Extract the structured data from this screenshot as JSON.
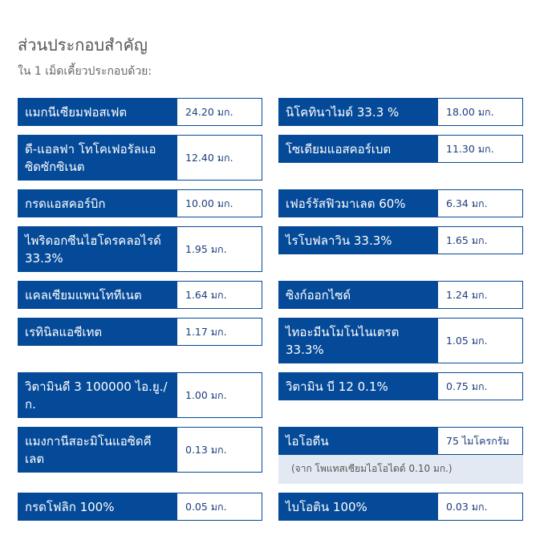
{
  "header": {
    "title": "ส่วนประกอบสำคัญ",
    "subtitle": "ใน 1 เม็ดเคี้ยวประกอบด้วย:"
  },
  "rows": [
    {
      "left": {
        "name": "แมกนีเซียมฟอสเฟต",
        "amount": "24.20 มก."
      },
      "right": {
        "name": "นิโคทินาไมด์ 33.3 %",
        "amount": "18.00 มก."
      }
    },
    {
      "left": {
        "name": "ดี-แอลฟา โทโคเฟอรัลแอซิดซักซิเนต",
        "amount": "12.40 มก."
      },
      "right": {
        "name": "โซเดียมแอสคอร์เบต",
        "amount": "11.30 มก."
      }
    },
    {
      "left": {
        "name": "กรดแอสคอร์บิก",
        "amount": "10.00 มก."
      },
      "right": {
        "name": "เฟอร์รัสฟิวมาเลต 60%",
        "amount": "6.34 มก."
      }
    },
    {
      "left": {
        "name": "ไพริดอกซีนไฮโดรคลอไรด์ 33.3%",
        "amount": "1.95 มก."
      },
      "right": {
        "name": "ไรโบฟลาวิน 33.3%",
        "amount": "1.65 มก."
      }
    },
    {
      "left": {
        "name": "แคลเซียมแพนโททีเนต",
        "amount": "1.64 มก."
      },
      "right": {
        "name": "ซิงก์ออกไซด์",
        "amount": "1.24 มก."
      }
    },
    {
      "left": {
        "name": "เรทินิลแอซีเทต",
        "amount": "1.17 มก."
      },
      "right": {
        "name": "ไทอะมีนโมโนไนเตรต 33.3%",
        "amount": "1.05 มก."
      }
    },
    {
      "left": {
        "name": "วิตามินดี 3 100000 ไอ.ยู./ก.",
        "amount": "1.00 มก."
      },
      "right": {
        "name": "วิตามิน บี 12 0.1%",
        "amount": "0.75 มก."
      }
    },
    {
      "left": {
        "name": "แมงกานีสอะมิโนแอซิดคีเลต",
        "amount": "0.13 มก."
      },
      "right": {
        "name": "ไอโอดีน",
        "amount": "75 ไมโครกรัม",
        "note": "(จาก โพแทสเซียมไอโอไดด์ 0.10 มก.)"
      }
    },
    {
      "left": {
        "name": "กรดโฟลิก 100%",
        "amount": "0.05 มก."
      },
      "right": {
        "name": "ไบโอติน 100%",
        "amount": "0.03 มก."
      }
    }
  ]
}
